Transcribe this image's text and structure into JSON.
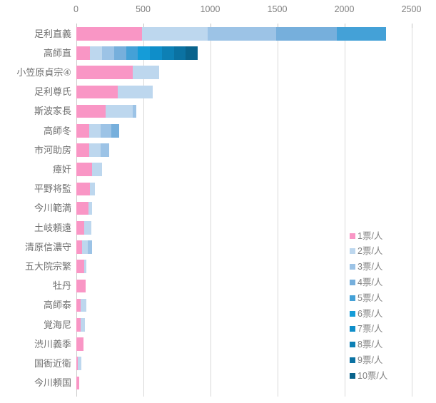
{
  "chart_data": {
    "type": "bar",
    "orientation": "horizontal",
    "stacked": true,
    "title": "",
    "xlabel": "",
    "ylabel": "",
    "x_axis": {
      "min": 0,
      "max": 2500,
      "tick_labels": [
        "0",
        "500",
        "1000",
        "1500",
        "2000",
        "2500"
      ],
      "tick_values": [
        0,
        500,
        1000,
        1500,
        2000,
        2500
      ],
      "grid": true
    },
    "legend_position": "right-bottom",
    "series": [
      {
        "name": "1票/人",
        "color": "#F996C5"
      },
      {
        "name": "2票/人",
        "color": "#BDD7EE"
      },
      {
        "name": "3票/人",
        "color": "#9CC3E6"
      },
      {
        "name": "4票/人",
        "color": "#76AFDC"
      },
      {
        "name": "5票/人",
        "color": "#44A1D7"
      },
      {
        "name": "6票/人",
        "color": "#159CD8"
      },
      {
        "name": "7票/人",
        "color": "#0F8EC9"
      },
      {
        "name": "8票/人",
        "color": "#0D80B5"
      },
      {
        "name": "9票/人",
        "color": "#0B72A2"
      },
      {
        "name": "10票/人",
        "color": "#09638C"
      }
    ],
    "rows": [
      {
        "label": "足利直義",
        "values": [
          490,
          490,
          510,
          450,
          370
        ]
      },
      {
        "label": "高師直",
        "values": [
          100,
          90,
          90,
          90,
          90,
          90,
          90,
          90,
          85,
          90
        ]
      },
      {
        "label": "小笠原貞宗④",
        "values": [
          420,
          195
        ]
      },
      {
        "label": "足利尊氏",
        "values": [
          310,
          260
        ]
      },
      {
        "label": "斯波家長",
        "values": [
          220,
          200,
          25
        ]
      },
      {
        "label": "高師冬",
        "values": [
          95,
          85,
          80,
          60
        ]
      },
      {
        "label": "市河助房",
        "values": [
          95,
          85,
          65
        ]
      },
      {
        "label": "瘴奸",
        "values": [
          115,
          75
        ]
      },
      {
        "label": "平野将監",
        "values": [
          100,
          40
        ]
      },
      {
        "label": "今川範満",
        "values": [
          90,
          25
        ]
      },
      {
        "label": "土岐頼遠",
        "values": [
          60,
          50
        ]
      },
      {
        "label": "清原信濃守",
        "values": [
          45,
          40,
          30
        ]
      },
      {
        "label": "五大院宗繁",
        "values": [
          60,
          15
        ]
      },
      {
        "label": "牡丹",
        "values": [
          70
        ]
      },
      {
        "label": "高師泰",
        "values": [
          30,
          45
        ]
      },
      {
        "label": "覚海尼",
        "values": [
          30,
          35
        ]
      },
      {
        "label": "渋川義季",
        "values": [
          55
        ]
      },
      {
        "label": "国衙近衛",
        "values": [
          10,
          25
        ]
      },
      {
        "label": "今川頼国",
        "values": [
          20
        ]
      }
    ]
  }
}
